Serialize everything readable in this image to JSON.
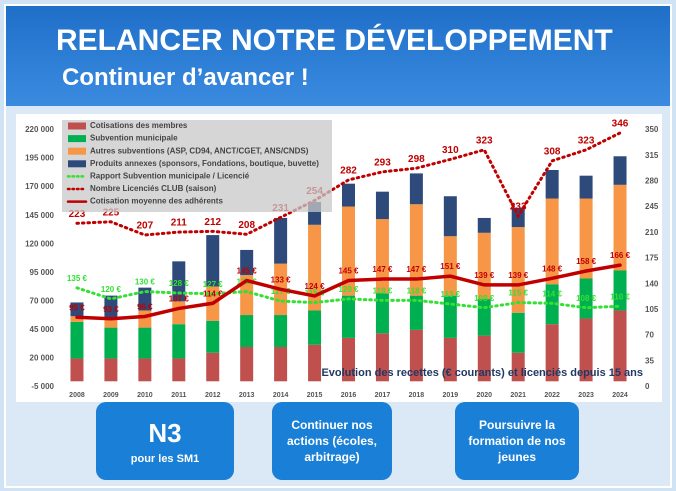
{
  "header": {
    "title": "RELANCER NOTRE DÉVELOPPEMENT",
    "subtitle": "Continuer d’avancer !"
  },
  "chart_data": {
    "type": "bar",
    "annotation": "Evolution des recettes (€ courants) et licenciés depuis 15 ans",
    "categories": [
      "2008",
      "2009",
      "2010",
      "2011",
      "2012",
      "2013",
      "2014",
      "2015",
      "2016",
      "2017",
      "2018",
      "2019",
      "2020",
      "2021",
      "2022",
      "2023",
      "2024"
    ],
    "ylim": [
      -5000,
      220000
    ],
    "yticks": [
      {
        "value": -5000,
        "label": "-5 000"
      },
      {
        "value": 20000,
        "label": "20 000"
      },
      {
        "value": 45000,
        "label": "45 000"
      },
      {
        "value": 70000,
        "label": "70 000"
      },
      {
        "value": 95000,
        "label": "95 000"
      },
      {
        "value": 120000,
        "label": "120 000"
      },
      {
        "value": 145000,
        "label": "145 000"
      },
      {
        "value": 170000,
        "label": "170 000"
      },
      {
        "value": 195000,
        "label": "195 000"
      },
      {
        "value": 220000,
        "label": "220 000"
      }
    ],
    "y2lim": [
      0,
      350
    ],
    "y2ticks": [
      0,
      35,
      70,
      105,
      140,
      175,
      210,
      245,
      280,
      315,
      350
    ],
    "grid": false,
    "legend": "upper left",
    "series": [
      {
        "name": "Cotisations des membres",
        "type": "bar",
        "color": "#c0504d",
        "values": [
          20000,
          20000,
          20000,
          20000,
          25000,
          30000,
          30000,
          32000,
          38000,
          42000,
          45000,
          38000,
          40000,
          25000,
          50000,
          55000,
          62000
        ]
      },
      {
        "name": "Subvention municipale",
        "type": "bar",
        "color": "#00b050",
        "values": [
          32000,
          27000,
          27000,
          30000,
          28000,
          28000,
          28000,
          30000,
          37000,
          35000,
          30000,
          37000,
          32000,
          35000,
          35000,
          35000,
          35000
        ]
      },
      {
        "name": "Autres subventions (ASP, CD94, ANCT/CGET, ANS/CNDS)",
        "type": "bar",
        "color": "#f79646",
        "values": [
          5000,
          8000,
          15000,
          20000,
          30000,
          35000,
          45000,
          75000,
          78000,
          65000,
          80000,
          52000,
          58000,
          75000,
          75000,
          70000,
          75000
        ]
      },
      {
        "name": "Produits annexes (sponsors, Fondations, boutique, buvette)",
        "type": "bar",
        "color": "#2e4a7a",
        "values": [
          12000,
          20000,
          20000,
          35000,
          45000,
          22000,
          40000,
          20000,
          20000,
          24000,
          27000,
          35000,
          13000,
          17000,
          25000,
          20000,
          25000
        ]
      },
      {
        "name": "Rapport Subvention municipale / Licencié",
        "type": "line",
        "axis": "y2",
        "style": "dotted",
        "color": "#33e033",
        "values": [
          135,
          120,
          130,
          128,
          127,
          130,
          117,
          115,
          120,
          118,
          118,
          113,
          108,
          115,
          114,
          108,
          110
        ],
        "value_labels": [
          "135 €",
          "120 €",
          "130 €",
          "128 €",
          "127 €",
          "130 €",
          "117 €",
          "115 €",
          "120 €",
          "118 €",
          "118 €",
          "113 €",
          "108 €",
          "115 €",
          "114 €",
          "108 €",
          "110 €"
        ]
      },
      {
        "name": "Nombre Licenciés CLUB (saison)",
        "type": "line",
        "axis": "y2",
        "style": "dotted",
        "color": "#c00000",
        "values": [
          223,
          225,
          207,
          211,
          212,
          208,
          231,
          254,
          282,
          293,
          298,
          310,
          323,
          233,
          308,
          323,
          346
        ]
      },
      {
        "name": "Cotisation moyenne des adhérents",
        "type": "line",
        "axis": "y2",
        "style": "solid",
        "color": "#c00000",
        "values": [
          95,
          93,
          96,
          107,
          114,
          145,
          133,
          124,
          145,
          147,
          147,
          151,
          139,
          139,
          148,
          158,
          166
        ],
        "value_labels": [
          "95 €",
          "93 €",
          "96 €",
          "107 €",
          "114 €",
          "145 €",
          "133 €",
          "124 €",
          "145 €",
          "147 €",
          "147 €",
          "151 €",
          "139 €",
          "139 €",
          "148 €",
          "158 €",
          "166 €"
        ]
      }
    ]
  },
  "buttons": [
    {
      "title": "N3",
      "subtitle": "pour les SM1"
    },
    {
      "text": "Continuer nos actions (écoles, arbitrage)"
    },
    {
      "text": "Poursuivre la formation de nos jeunes"
    }
  ]
}
